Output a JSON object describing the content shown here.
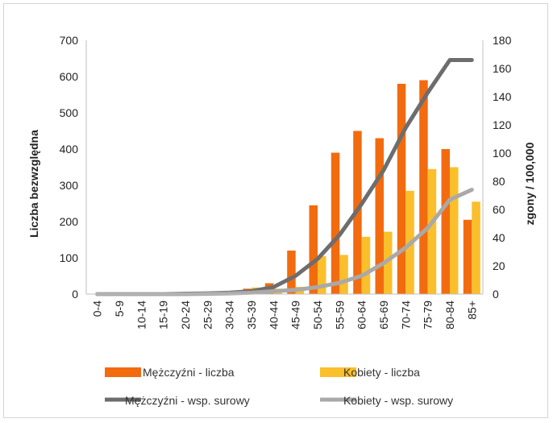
{
  "chart_data": {
    "type": "bar",
    "categories": [
      "0-4",
      "5-9",
      "10-14",
      "15-19",
      "20-24",
      "25-29",
      "30-34",
      "35-39",
      "40-44",
      "45-49",
      "50-54",
      "55-59",
      "60-64",
      "65-69",
      "70-74",
      "75-79",
      "80-84",
      "85+"
    ],
    "series": [
      {
        "name": "Mężczyźni - liczba",
        "type": "bar",
        "axis": "left",
        "color": "#f26b0f",
        "values": [
          0,
          0,
          0,
          0,
          0,
          0,
          2,
          15,
          30,
          120,
          245,
          390,
          450,
          430,
          580,
          590,
          400,
          205
        ]
      },
      {
        "name": "Kobiety - liczba",
        "type": "bar",
        "axis": "left",
        "color": "#fbbf2c",
        "values": [
          0,
          0,
          0,
          0,
          0,
          0,
          1,
          18,
          15,
          20,
          105,
          108,
          158,
          172,
          285,
          345,
          350,
          255
        ]
      },
      {
        "name": "Mężczyźni - wsp. surowy",
        "type": "line",
        "axis": "right",
        "color": "#6d6d6d",
        "values": [
          0,
          0,
          0,
          0,
          0.3,
          0.5,
          1,
          2,
          5,
          13,
          25,
          42,
          64,
          88,
          118,
          143,
          166,
          166
        ]
      },
      {
        "name": "Kobiety - wsp. surowy",
        "type": "line",
        "axis": "right",
        "color": "#a9a9a9",
        "values": [
          0,
          0,
          0,
          0,
          0,
          0.2,
          0.5,
          1,
          2,
          3,
          5,
          8,
          13,
          22,
          33,
          47,
          67,
          74
        ]
      }
    ],
    "ylabel": "Liczba bezwzględna",
    "y2label": "zgony / 100,000",
    "ylim": [
      0,
      700
    ],
    "y2lim": [
      0,
      180
    ],
    "yticks": [
      "0",
      "100",
      "200",
      "300",
      "400",
      "500",
      "600",
      "700"
    ],
    "y2ticks": [
      "0",
      "20",
      "40",
      "60",
      "80",
      "100",
      "120",
      "140",
      "160",
      "180"
    ],
    "grid": false,
    "legend": "bottom"
  }
}
